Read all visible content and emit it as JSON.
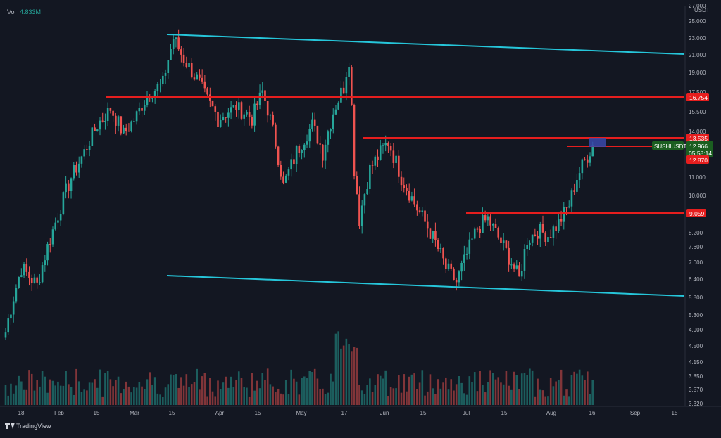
{
  "header": {
    "vol_label": "Vol",
    "vol_value": "4.833M"
  },
  "price_axis": {
    "unit": "USDT",
    "ticks": [
      "27.000",
      "25.000",
      "23.000",
      "21.000",
      "19.000",
      "17.500",
      "15.500",
      "14.000",
      "11.000",
      "10.000",
      "8.200",
      "7.600",
      "7.000",
      "6.400",
      "5.800",
      "5.300",
      "4.900",
      "4.500",
      "4.150",
      "3.850",
      "3.570",
      "3.320"
    ]
  },
  "time_axis": {
    "ticks": [
      "18",
      "Feb",
      "15",
      "Mar",
      "15",
      "Apr",
      "15",
      "May",
      "17",
      "Jun",
      "15",
      "Jul",
      "15",
      "Aug",
      "16",
      "Sep",
      "15"
    ]
  },
  "symbol": {
    "name": "SUSHIUSDT",
    "last_price": "12.966",
    "countdown": "05:58:14"
  },
  "levels": [
    {
      "label": "16.754",
      "price": 16.754,
      "from": "Mar 1"
    },
    {
      "label": "13.535",
      "price": 13.535,
      "from": "May 22"
    },
    {
      "label": "12.870",
      "price": 12.87,
      "from": "Aug 4"
    },
    {
      "label": "9.059",
      "price": 9.059,
      "from": "Jun 29"
    }
  ],
  "colors": {
    "background": "#131722",
    "up": "#26a69a",
    "down": "#ef5350",
    "level": "#e61e1e",
    "channel": "#26c6da",
    "text": "#b2b5be",
    "highlight": "#3949ab"
  },
  "branding": {
    "name": "TradingView"
  },
  "chart_data": {
    "type": "candlestick",
    "x_range": [
      "2021-01-08",
      "2021-09-24"
    ],
    "y_range": [
      3.32,
      27.0
    ],
    "y_scale": "log",
    "series": [
      {
        "name": "",
        "ohlc_note": "daily candles",
        "close_points": [
          [
            "2021-01-08",
            4.85
          ],
          [
            "2021-01-14",
            6.8
          ],
          [
            "2021-01-20",
            6.2
          ],
          [
            "2021-01-24",
            7.6
          ],
          [
            "2021-01-28",
            9.0
          ],
          [
            "2021-02-02",
            11.0
          ],
          [
            "2021-02-07",
            12.5
          ],
          [
            "2021-02-12",
            14.5
          ],
          [
            "2021-02-17",
            15.8
          ],
          [
            "2021-02-22",
            13.8
          ],
          [
            "2021-02-27",
            15.2
          ],
          [
            "2021-03-04",
            17.5
          ],
          [
            "2021-03-09",
            18.0
          ],
          [
            "2021-03-13",
            23.0
          ],
          [
            "2021-03-17",
            20.5
          ],
          [
            "2021-03-23",
            18.0
          ],
          [
            "2021-03-30",
            15.0
          ],
          [
            "2021-04-06",
            16.0
          ],
          [
            "2021-04-12",
            15.0
          ],
          [
            "2021-04-16",
            17.5
          ],
          [
            "2021-04-20",
            14.0
          ],
          [
            "2021-04-24",
            10.5
          ],
          [
            "2021-04-29",
            12.5
          ],
          [
            "2021-05-05",
            14.5
          ],
          [
            "2021-05-09",
            12.5
          ],
          [
            "2021-05-13",
            15.5
          ],
          [
            "2021-05-17",
            18.0
          ],
          [
            "2021-05-19",
            20.5
          ],
          [
            "2021-05-21",
            11.5
          ],
          [
            "2021-05-23",
            8.8
          ],
          [
            "2021-05-27",
            11.5
          ],
          [
            "2021-06-03",
            13.2
          ],
          [
            "2021-06-08",
            11.0
          ],
          [
            "2021-06-14",
            9.3
          ],
          [
            "2021-06-20",
            8.0
          ],
          [
            "2021-06-25",
            6.8
          ],
          [
            "2021-06-29",
            6.3
          ],
          [
            "2021-07-03",
            7.3
          ],
          [
            "2021-07-07",
            8.4
          ],
          [
            "2021-07-11",
            8.8
          ],
          [
            "2021-07-15",
            8.0
          ],
          [
            "2021-07-20",
            7.0
          ],
          [
            "2021-07-23",
            6.4
          ],
          [
            "2021-07-26",
            7.9
          ],
          [
            "2021-07-30",
            8.3
          ],
          [
            "2021-08-03",
            8.1
          ],
          [
            "2021-08-07",
            8.6
          ],
          [
            "2021-08-11",
            9.5
          ],
          [
            "2021-08-14",
            11.0
          ],
          [
            "2021-08-17",
            12.0
          ],
          [
            "2021-08-20",
            12.966
          ]
        ]
      }
    ],
    "annotations": {
      "channel_upper": [
        [
          "2021-03-13",
          23.2
        ],
        [
          "2021-09-24",
          21.0
        ]
      ],
      "channel_lower": [
        [
          "2021-03-13",
          6.55
        ],
        [
          "2021-09-24",
          5.9
        ]
      ],
      "horizontal_levels": [
        16.754,
        13.535,
        12.87,
        9.059
      ]
    },
    "grid": false
  }
}
